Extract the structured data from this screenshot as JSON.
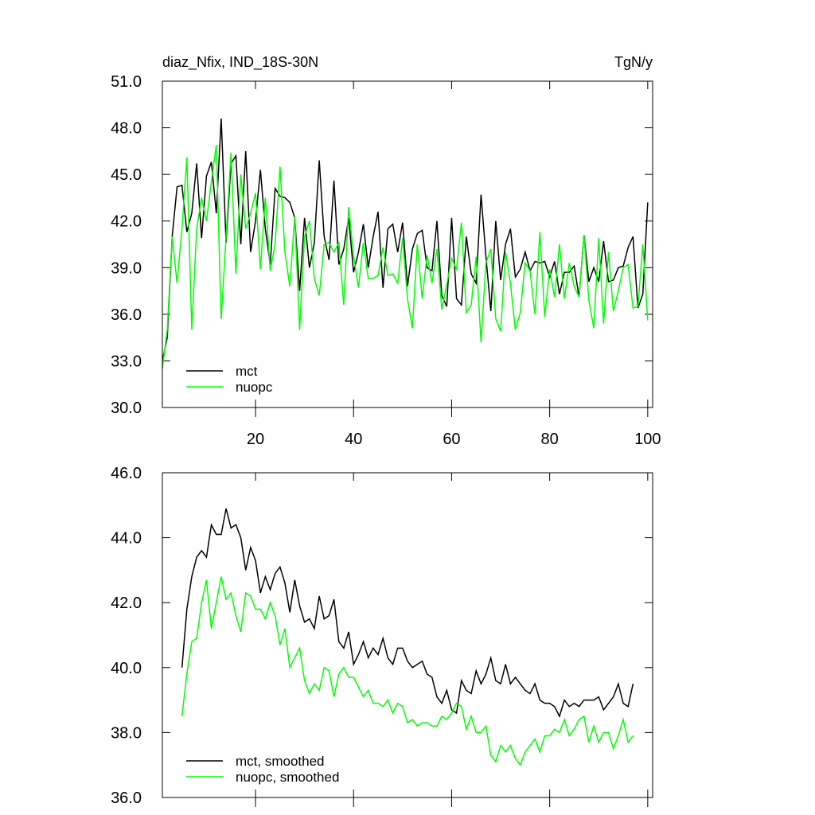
{
  "chart_data": [
    {
      "type": "line",
      "title": "diaz_Nfix, IND_18S-30N",
      "right_title": "TgN/y",
      "x": [
        1,
        2,
        3,
        4,
        5,
        6,
        7,
        8,
        9,
        10,
        11,
        12,
        13,
        14,
        15,
        16,
        17,
        18,
        19,
        20,
        21,
        22,
        23,
        24,
        25,
        26,
        27,
        28,
        29,
        30,
        31,
        32,
        33,
        34,
        35,
        36,
        37,
        38,
        39,
        40,
        41,
        42,
        43,
        44,
        45,
        46,
        47,
        48,
        49,
        50,
        51,
        52,
        53,
        54,
        55,
        56,
        57,
        58,
        59,
        60,
        61,
        62,
        63,
        64,
        65,
        66,
        67,
        68,
        69,
        70,
        71,
        72,
        73,
        74,
        75,
        76,
        77,
        78,
        79,
        80,
        81,
        82,
        83,
        84,
        85,
        86,
        87,
        88,
        89,
        90,
        91,
        92,
        93,
        94,
        95,
        96,
        97,
        98,
        99,
        100
      ],
      "series": [
        {
          "name": "mct",
          "color": "#000000",
          "values": [
            33.0,
            34.5,
            41,
            44.2,
            44.3,
            41.3,
            42.5,
            45.7,
            40.9,
            44.9,
            45.8,
            42.5,
            48.6,
            40.6,
            45.7,
            46.2,
            40.5,
            46.5,
            40.0,
            42.0,
            45.3,
            41.5,
            39.2,
            44.1,
            43.6,
            43.5,
            43.2,
            42.2,
            37.5,
            42.2,
            39.0,
            40.6,
            45.9,
            41.0,
            39.5,
            44.6,
            39.2,
            40.2,
            42.2,
            38.7,
            40.0,
            41.8,
            39.0,
            41.0,
            42.6,
            37.7,
            41.5,
            41.8,
            40.0,
            41.9,
            37.8,
            40.2,
            41.2,
            41.4,
            39.0,
            38.8,
            42.0,
            37.2,
            36.5,
            42.2,
            37.0,
            36.6,
            41.0,
            38.6,
            38.0,
            43.7,
            39.7,
            36.2,
            42.0,
            38.2,
            40.5,
            41.5,
            38.4,
            38.9,
            40.0,
            38.8,
            39.4,
            39.3,
            39.4,
            38.4,
            39.4,
            37.3,
            38.7,
            38.7,
            39.1,
            37.1,
            41.1,
            38.1,
            39.0,
            38.1,
            40.7,
            38.1,
            38.2,
            39.0,
            39.1,
            40.3,
            41.0,
            36.4,
            37.3,
            43.2
          ]
        },
        {
          "name": "nuopc",
          "color": "#00ff00",
          "values": [
            32.5,
            35,
            41,
            38,
            41.5,
            46.1,
            35,
            41.5,
            43.5,
            42,
            44.5,
            46.9,
            35.7,
            41,
            46.4,
            38.6,
            45,
            41.5,
            42.5,
            43.8,
            38.9,
            43.5,
            38.8,
            40.5,
            45.5,
            40,
            37.8,
            42.3,
            35,
            41,
            42,
            38.3,
            37.2,
            40.5,
            40.6,
            40.0,
            40.6,
            36.6,
            42.9,
            39.8,
            37.7,
            40.6,
            38.3,
            38.3,
            38.5,
            40.3,
            38.5,
            38.6,
            38.0,
            40.9,
            37.0,
            35.1,
            40.5,
            37.0,
            39.8,
            38.0,
            40.2,
            36.3,
            37.9,
            39.6,
            38.9,
            41.9,
            36.1,
            36.6,
            39.7,
            34.2,
            39.3,
            40.2,
            35.7,
            34.9,
            40.0,
            38.0,
            35.0,
            36.1,
            39.3,
            38.8,
            36.0,
            41.3,
            35.8,
            38.9,
            37.1,
            40.5,
            37.0,
            39.3,
            37.8,
            37.1,
            41.1,
            36.9,
            35.1,
            40.9,
            35.4,
            40.0,
            36.2,
            37.5,
            39.0,
            39.2,
            36.4,
            36.5,
            40.5,
            35.6
          ]
        }
      ],
      "xlim": [
        1,
        101
      ],
      "xticks": [
        20,
        40,
        60,
        80,
        100
      ],
      "ylim": [
        30,
        51
      ],
      "yticks": [
        {
          "value": 30,
          "label": "30.0"
        },
        {
          "value": 33,
          "label": "33.0"
        },
        {
          "value": 36,
          "label": "36.0"
        },
        {
          "value": 39,
          "label": "39.0"
        },
        {
          "value": 42,
          "label": "42.0"
        },
        {
          "value": 45,
          "label": "45.0"
        },
        {
          "value": 48,
          "label": "48.0"
        },
        {
          "value": 51,
          "label": "51.0"
        }
      ],
      "legend": "lower-left"
    },
    {
      "type": "line",
      "x": [
        5,
        6,
        7,
        8,
        9,
        10,
        11,
        12,
        13,
        14,
        15,
        16,
        17,
        18,
        19,
        20,
        21,
        22,
        23,
        24,
        25,
        26,
        27,
        28,
        29,
        30,
        31,
        32,
        33,
        34,
        35,
        36,
        37,
        38,
        39,
        40,
        41,
        42,
        43,
        44,
        45,
        46,
        47,
        48,
        49,
        50,
        51,
        52,
        53,
        54,
        55,
        56,
        57,
        58,
        59,
        60,
        61,
        62,
        63,
        64,
        65,
        66,
        67,
        68,
        69,
        70,
        71,
        72,
        73,
        74,
        75,
        76,
        77,
        78,
        79,
        80,
        81,
        82,
        83,
        84,
        85,
        86,
        87,
        88,
        89,
        90,
        91,
        92,
        93,
        94,
        95,
        96,
        97
      ],
      "series": [
        {
          "name": "mct, smoothed",
          "color": "#000000",
          "values": [
            40.0,
            41.8,
            42.8,
            43.4,
            43.6,
            43.4,
            44.4,
            44.1,
            44.1,
            44.9,
            44.3,
            44.4,
            44.0,
            43.0,
            43.7,
            43.3,
            42.3,
            42.8,
            42.4,
            42.9,
            43.1,
            42.6,
            41.7,
            42.7,
            41.9,
            41.4,
            41.5,
            41.2,
            42.2,
            41.5,
            41.6,
            42.1,
            40.8,
            40.6,
            41.1,
            40.1,
            40.4,
            40.8,
            40.3,
            40.6,
            40.4,
            40.9,
            40.3,
            40.1,
            40.6,
            40.6,
            40.2,
            40.0,
            40.1,
            40.2,
            39.8,
            39.7,
            39.1,
            38.9,
            39.3,
            38.7,
            38.6,
            39.6,
            39.3,
            39.2,
            39.9,
            39.5,
            39.8,
            40.3,
            39.6,
            39.5,
            40.1,
            39.5,
            39.7,
            39.5,
            39.3,
            39.2,
            39.5,
            39.0,
            38.9,
            38.9,
            38.8,
            38.5,
            39.0,
            38.8,
            38.9,
            38.8,
            39.0,
            39.0,
            39.0,
            39.1,
            38.7,
            38.9,
            39.1,
            39.5,
            38.9,
            38.8,
            39.5
          ]
        },
        {
          "name": "nuopc, smoothed",
          "color": "#00ff00",
          "values": [
            38.5,
            39.8,
            40.8,
            40.9,
            42.0,
            42.7,
            41.2,
            42.0,
            42.8,
            42.1,
            42.3,
            41.6,
            41.1,
            42.3,
            42.2,
            41.8,
            41.8,
            41.5,
            42.0,
            41.6,
            40.7,
            41.2,
            40.0,
            40.3,
            40.6,
            39.6,
            39.2,
            39.5,
            39.3,
            40.0,
            39.9,
            39.1,
            39.8,
            40.0,
            39.7,
            39.7,
            39.4,
            39.1,
            39.3,
            38.9,
            38.9,
            38.8,
            39.0,
            38.6,
            38.9,
            38.8,
            38.3,
            38.4,
            38.2,
            38.3,
            38.3,
            38.2,
            38.2,
            38.5,
            38.4,
            38.6,
            38.9,
            38.8,
            38.1,
            38.5,
            38.0,
            38.0,
            38.2,
            37.3,
            37.1,
            37.6,
            37.4,
            37.6,
            37.2,
            37.0,
            37.4,
            37.6,
            37.8,
            37.4,
            37.9,
            37.9,
            38.1,
            38.0,
            38.4,
            37.9,
            38.1,
            38.4,
            38.5,
            37.7,
            38.2,
            37.7,
            38.0,
            38.0,
            37.5,
            37.9,
            38.4,
            37.7,
            37.9
          ]
        }
      ],
      "xlim": [
        1,
        101
      ],
      "xticks": [
        20,
        40,
        60,
        80,
        100
      ],
      "ylim": [
        36,
        46
      ],
      "yticks": [
        {
          "value": 36,
          "label": "36.0"
        },
        {
          "value": 38,
          "label": "38.0"
        },
        {
          "value": 40,
          "label": "40.0"
        },
        {
          "value": 42,
          "label": "42.0"
        },
        {
          "value": 44,
          "label": "44.0"
        },
        {
          "value": 46,
          "label": "46.0"
        }
      ],
      "legend": "lower-left"
    }
  ]
}
